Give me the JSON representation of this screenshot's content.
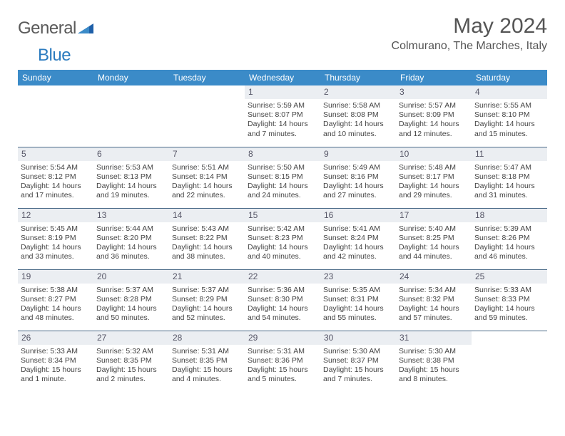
{
  "brand": {
    "part1": "General",
    "part2": "Blue"
  },
  "title": "May 2024",
  "location": "Colmurano, The Marches, Italy",
  "colors": {
    "header_bg": "#3b8bc8",
    "header_text": "#ffffff",
    "daynum_bg": "#ebeef2",
    "rule": "#4a6a88",
    "brand_gray": "#5a5a5a",
    "brand_blue": "#2b7bbf"
  },
  "day_labels": [
    "Sunday",
    "Monday",
    "Tuesday",
    "Wednesday",
    "Thursday",
    "Friday",
    "Saturday"
  ],
  "weeks": [
    [
      {
        "n": "",
        "e": true
      },
      {
        "n": "",
        "e": true
      },
      {
        "n": "",
        "e": true
      },
      {
        "n": "1",
        "sr": "Sunrise: 5:59 AM",
        "ss": "Sunset: 8:07 PM",
        "dl": "Daylight: 14 hours and 7 minutes."
      },
      {
        "n": "2",
        "sr": "Sunrise: 5:58 AM",
        "ss": "Sunset: 8:08 PM",
        "dl": "Daylight: 14 hours and 10 minutes."
      },
      {
        "n": "3",
        "sr": "Sunrise: 5:57 AM",
        "ss": "Sunset: 8:09 PM",
        "dl": "Daylight: 14 hours and 12 minutes."
      },
      {
        "n": "4",
        "sr": "Sunrise: 5:55 AM",
        "ss": "Sunset: 8:10 PM",
        "dl": "Daylight: 14 hours and 15 minutes."
      }
    ],
    [
      {
        "n": "5",
        "sr": "Sunrise: 5:54 AM",
        "ss": "Sunset: 8:12 PM",
        "dl": "Daylight: 14 hours and 17 minutes."
      },
      {
        "n": "6",
        "sr": "Sunrise: 5:53 AM",
        "ss": "Sunset: 8:13 PM",
        "dl": "Daylight: 14 hours and 19 minutes."
      },
      {
        "n": "7",
        "sr": "Sunrise: 5:51 AM",
        "ss": "Sunset: 8:14 PM",
        "dl": "Daylight: 14 hours and 22 minutes."
      },
      {
        "n": "8",
        "sr": "Sunrise: 5:50 AM",
        "ss": "Sunset: 8:15 PM",
        "dl": "Daylight: 14 hours and 24 minutes."
      },
      {
        "n": "9",
        "sr": "Sunrise: 5:49 AM",
        "ss": "Sunset: 8:16 PM",
        "dl": "Daylight: 14 hours and 27 minutes."
      },
      {
        "n": "10",
        "sr": "Sunrise: 5:48 AM",
        "ss": "Sunset: 8:17 PM",
        "dl": "Daylight: 14 hours and 29 minutes."
      },
      {
        "n": "11",
        "sr": "Sunrise: 5:47 AM",
        "ss": "Sunset: 8:18 PM",
        "dl": "Daylight: 14 hours and 31 minutes."
      }
    ],
    [
      {
        "n": "12",
        "sr": "Sunrise: 5:45 AM",
        "ss": "Sunset: 8:19 PM",
        "dl": "Daylight: 14 hours and 33 minutes."
      },
      {
        "n": "13",
        "sr": "Sunrise: 5:44 AM",
        "ss": "Sunset: 8:20 PM",
        "dl": "Daylight: 14 hours and 36 minutes."
      },
      {
        "n": "14",
        "sr": "Sunrise: 5:43 AM",
        "ss": "Sunset: 8:22 PM",
        "dl": "Daylight: 14 hours and 38 minutes."
      },
      {
        "n": "15",
        "sr": "Sunrise: 5:42 AM",
        "ss": "Sunset: 8:23 PM",
        "dl": "Daylight: 14 hours and 40 minutes."
      },
      {
        "n": "16",
        "sr": "Sunrise: 5:41 AM",
        "ss": "Sunset: 8:24 PM",
        "dl": "Daylight: 14 hours and 42 minutes."
      },
      {
        "n": "17",
        "sr": "Sunrise: 5:40 AM",
        "ss": "Sunset: 8:25 PM",
        "dl": "Daylight: 14 hours and 44 minutes."
      },
      {
        "n": "18",
        "sr": "Sunrise: 5:39 AM",
        "ss": "Sunset: 8:26 PM",
        "dl": "Daylight: 14 hours and 46 minutes."
      }
    ],
    [
      {
        "n": "19",
        "sr": "Sunrise: 5:38 AM",
        "ss": "Sunset: 8:27 PM",
        "dl": "Daylight: 14 hours and 48 minutes."
      },
      {
        "n": "20",
        "sr": "Sunrise: 5:37 AM",
        "ss": "Sunset: 8:28 PM",
        "dl": "Daylight: 14 hours and 50 minutes."
      },
      {
        "n": "21",
        "sr": "Sunrise: 5:37 AM",
        "ss": "Sunset: 8:29 PM",
        "dl": "Daylight: 14 hours and 52 minutes."
      },
      {
        "n": "22",
        "sr": "Sunrise: 5:36 AM",
        "ss": "Sunset: 8:30 PM",
        "dl": "Daylight: 14 hours and 54 minutes."
      },
      {
        "n": "23",
        "sr": "Sunrise: 5:35 AM",
        "ss": "Sunset: 8:31 PM",
        "dl": "Daylight: 14 hours and 55 minutes."
      },
      {
        "n": "24",
        "sr": "Sunrise: 5:34 AM",
        "ss": "Sunset: 8:32 PM",
        "dl": "Daylight: 14 hours and 57 minutes."
      },
      {
        "n": "25",
        "sr": "Sunrise: 5:33 AM",
        "ss": "Sunset: 8:33 PM",
        "dl": "Daylight: 14 hours and 59 minutes."
      }
    ],
    [
      {
        "n": "26",
        "sr": "Sunrise: 5:33 AM",
        "ss": "Sunset: 8:34 PM",
        "dl": "Daylight: 15 hours and 1 minute."
      },
      {
        "n": "27",
        "sr": "Sunrise: 5:32 AM",
        "ss": "Sunset: 8:35 PM",
        "dl": "Daylight: 15 hours and 2 minutes."
      },
      {
        "n": "28",
        "sr": "Sunrise: 5:31 AM",
        "ss": "Sunset: 8:35 PM",
        "dl": "Daylight: 15 hours and 4 minutes."
      },
      {
        "n": "29",
        "sr": "Sunrise: 5:31 AM",
        "ss": "Sunset: 8:36 PM",
        "dl": "Daylight: 15 hours and 5 minutes."
      },
      {
        "n": "30",
        "sr": "Sunrise: 5:30 AM",
        "ss": "Sunset: 8:37 PM",
        "dl": "Daylight: 15 hours and 7 minutes."
      },
      {
        "n": "31",
        "sr": "Sunrise: 5:30 AM",
        "ss": "Sunset: 8:38 PM",
        "dl": "Daylight: 15 hours and 8 minutes."
      },
      {
        "n": "",
        "e": true
      }
    ]
  ]
}
